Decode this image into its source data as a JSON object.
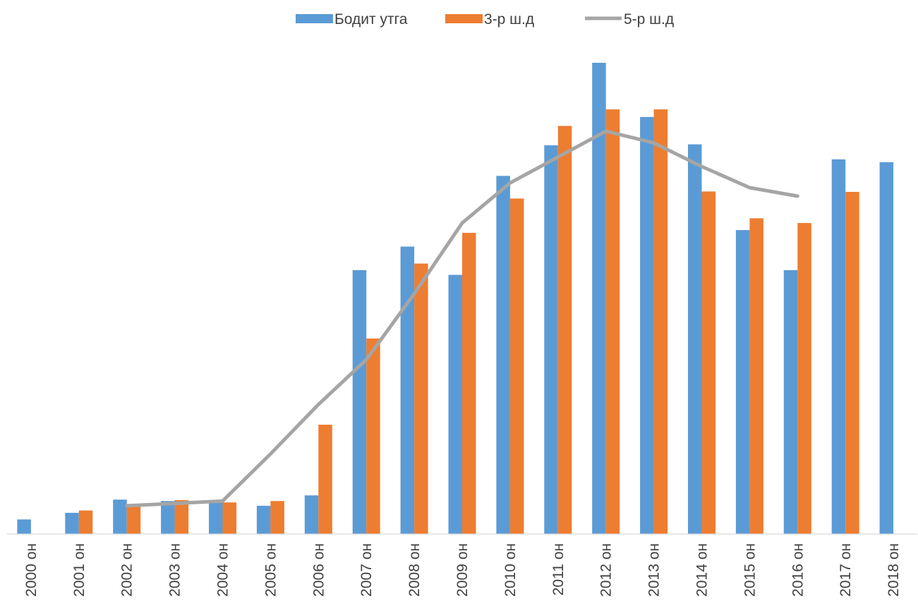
{
  "chart_data": {
    "type": "bar",
    "categories": [
      "2000 он",
      "2001 он",
      "2002 он",
      "2003 он",
      "2004 он",
      "2005 он",
      "2006 он",
      "2007 он",
      "2008 он",
      "2009 он",
      "2010 он",
      "2011 он",
      "2012 он",
      "2013 он",
      "2014 он",
      "2015 он",
      "2016 он",
      "2017 он",
      "2018 он"
    ],
    "series": [
      {
        "name": "Бодит утга",
        "kind": "bar",
        "color": "#5B9BD5",
        "values": [
          3.1,
          4.5,
          7.3,
          7.0,
          7.0,
          6.0,
          8.2,
          56.0,
          61.0,
          55.0,
          76.0,
          82.5,
          100.0,
          88.5,
          82.7,
          64.5,
          56.0,
          79.5,
          78.9
        ]
      },
      {
        "name": "3-р ш.д",
        "kind": "bar",
        "color": "#ED7D31",
        "values": [
          null,
          5.0,
          6.1,
          7.2,
          6.7,
          7.0,
          23.2,
          41.5,
          57.4,
          63.9,
          71.2,
          86.6,
          90.1,
          90.1,
          72.7,
          67.0,
          66.0,
          72.6,
          null
        ]
      },
      {
        "name": "5-р ш.д",
        "kind": "line",
        "color": "#A5A5A5",
        "values": [
          null,
          null,
          6.0,
          6.5,
          7.0,
          17.0,
          27.5,
          37.0,
          51.0,
          66.0,
          74.5,
          80.0,
          85.5,
          83.0,
          78.0,
          73.5,
          71.7,
          null,
          null
        ]
      }
    ],
    "ylim": [
      0,
      100
    ],
    "grid": false,
    "legend": "top-center"
  }
}
